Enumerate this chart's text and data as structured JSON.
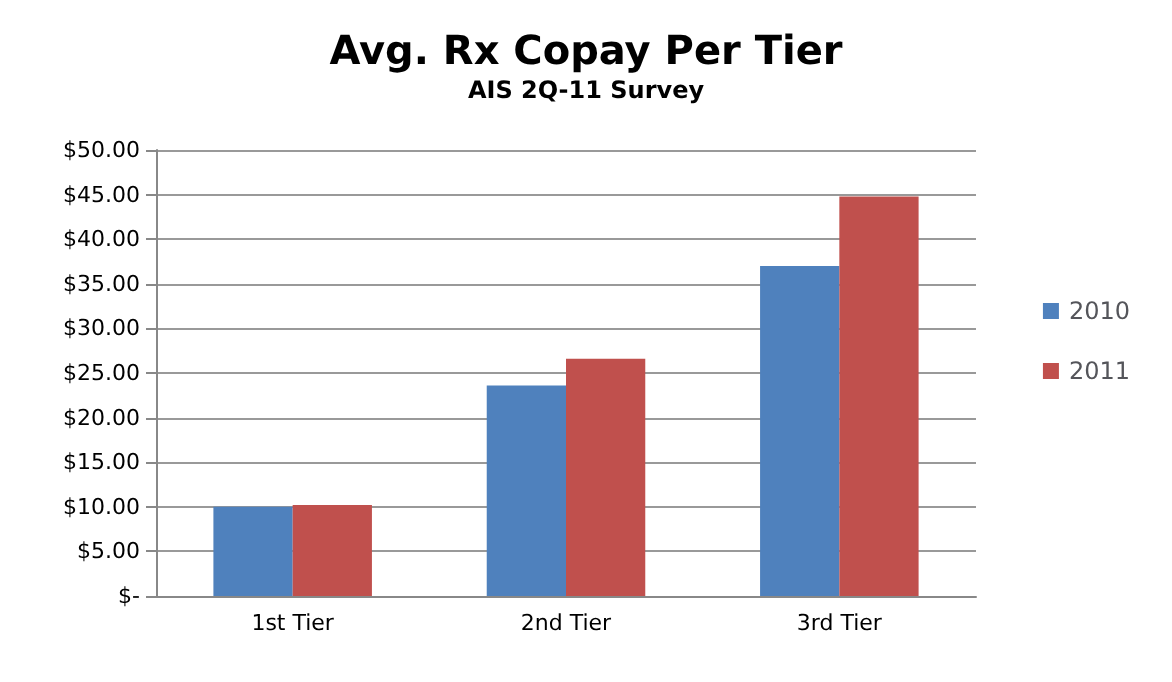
{
  "chart_data": {
    "type": "bar",
    "title": "Avg. Rx Copay Per Tier",
    "subtitle": "AIS 2Q-11 Survey",
    "categories": [
      "1st Tier",
      "2nd Tier",
      "3rd Tier"
    ],
    "series": [
      {
        "name": "2010",
        "color": "#4f81bd",
        "values": [
          10.0,
          23.6,
          37.0
        ]
      },
      {
        "name": "2011",
        "color": "#c0504d",
        "values": [
          10.2,
          26.6,
          44.8
        ]
      }
    ],
    "ylim": [
      0,
      50
    ],
    "yticks": [
      {
        "value": 0,
        "label": "$-"
      },
      {
        "value": 5,
        "label": "$5.00"
      },
      {
        "value": 10,
        "label": "$10.00"
      },
      {
        "value": 15,
        "label": "$15.00"
      },
      {
        "value": 20,
        "label": "$20.00"
      },
      {
        "value": 25,
        "label": "$25.00"
      },
      {
        "value": 30,
        "label": "$30.00"
      },
      {
        "value": 35,
        "label": "$35.00"
      },
      {
        "value": 40,
        "label": "$40.00"
      },
      {
        "value": 45,
        "label": "$45.00"
      },
      {
        "value": 50,
        "label": "$50.00"
      }
    ],
    "grid": "y",
    "legend": "right"
  }
}
